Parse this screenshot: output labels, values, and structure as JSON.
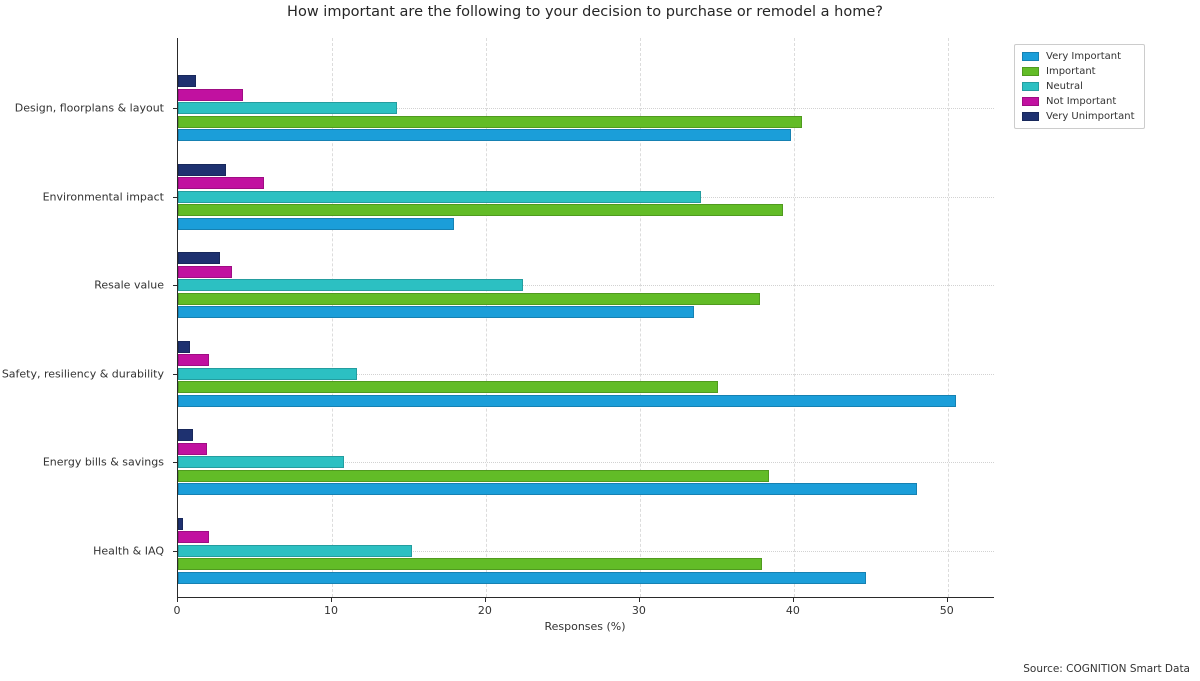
{
  "source": "Source: COGNITION Smart Data",
  "chart_data": {
    "type": "bar",
    "orientation": "horizontal",
    "title": "How important are the following to your decision to purchase or remodel a home?",
    "xlabel": "Responses (%)",
    "ylabel": "",
    "xlim": [
      0,
      53
    ],
    "xticks": [
      0,
      10,
      20,
      30,
      40,
      50
    ],
    "grid": true,
    "legend_position": "upper right outside",
    "categories": [
      "Design, floorplans & layout",
      "Environmental impact",
      "Resale value",
      "Safety, resiliency & durability",
      "Energy bills & savings",
      "Health & IAQ"
    ],
    "series": [
      {
        "name": "Very Important",
        "color": "#1b9ed9",
        "values": [
          39.8,
          17.9,
          33.5,
          50.5,
          48.0,
          44.7
        ]
      },
      {
        "name": "Important",
        "color": "#62bc27",
        "values": [
          40.5,
          39.3,
          37.8,
          35.1,
          38.4,
          37.9
        ]
      },
      {
        "name": "Neutral",
        "color": "#2cc0c2",
        "values": [
          14.2,
          34.0,
          22.4,
          11.6,
          10.8,
          15.2
        ]
      },
      {
        "name": "Not Important",
        "color": "#c111a0",
        "values": [
          4.2,
          5.6,
          3.5,
          2.0,
          1.9,
          2.0
        ]
      },
      {
        "name": "Very Unimportant",
        "color": "#1e3170",
        "values": [
          1.2,
          3.1,
          2.7,
          0.8,
          1.0,
          0.3
        ]
      }
    ],
    "bar_order_top_to_bottom": [
      "Very Unimportant",
      "Not Important",
      "Neutral",
      "Important",
      "Very Important"
    ]
  }
}
